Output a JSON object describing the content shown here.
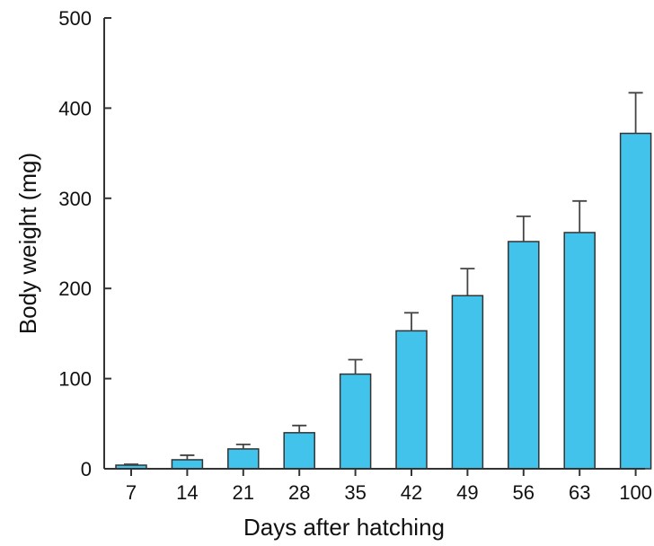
{
  "chart_data": {
    "type": "bar",
    "title": "",
    "xlabel": "Days after hatching",
    "ylabel": "Body weight (mg)",
    "categories": [
      "7",
      "14",
      "21",
      "28",
      "35",
      "42",
      "49",
      "56",
      "63",
      "100"
    ],
    "values": [
      4,
      10,
      22,
      40,
      105,
      153,
      192,
      252,
      262,
      372
    ],
    "error_upper": [
      1,
      5,
      5,
      8,
      16,
      20,
      30,
      28,
      35,
      45
    ],
    "ylim": [
      0,
      500
    ],
    "yticks": [
      0,
      100,
      200,
      300,
      400,
      500
    ],
    "grid": false,
    "legend": "none",
    "bar_color": "#41c3ec",
    "edge_color": "#333333"
  }
}
